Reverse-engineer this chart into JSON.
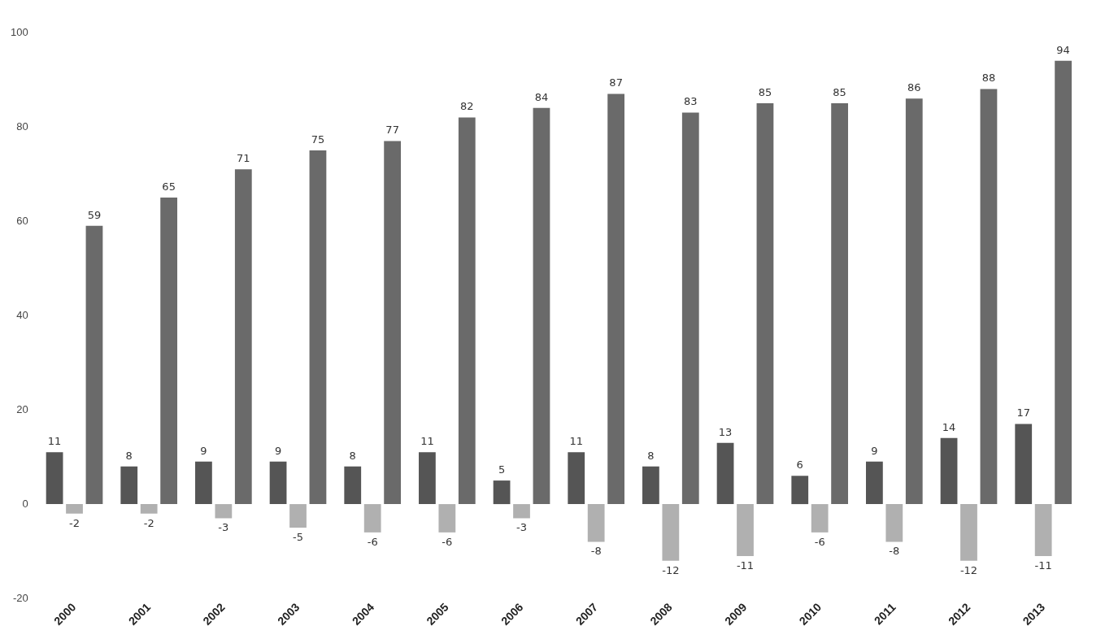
{
  "chart_data": {
    "type": "bar",
    "categories": [
      "2000",
      "2001",
      "2002",
      "2003",
      "2004",
      "2005",
      "2006",
      "2007",
      "2008",
      "2009",
      "2010",
      "2011",
      "2012",
      "2013"
    ],
    "series": [
      {
        "color": "#555555",
        "values": [
          11,
          8,
          9,
          9,
          8,
          11,
          5,
          11,
          8,
          13,
          6,
          9,
          14,
          17
        ]
      },
      {
        "color": "#b0b0b0",
        "values": [
          -2,
          -2,
          -3,
          -5,
          -6,
          -6,
          -3,
          -8,
          -12,
          -11,
          -6,
          -8,
          -12,
          -11
        ]
      },
      {
        "color": "#6a6a6a",
        "values": [
          59,
          65,
          71,
          75,
          77,
          82,
          84,
          87,
          83,
          85,
          85,
          86,
          88,
          94
        ]
      }
    ],
    "ylim": [
      -20,
      100
    ],
    "yticks": [
      -20,
      0,
      20,
      40,
      60,
      80,
      100
    ],
    "grid": false,
    "data_labels": true
  }
}
